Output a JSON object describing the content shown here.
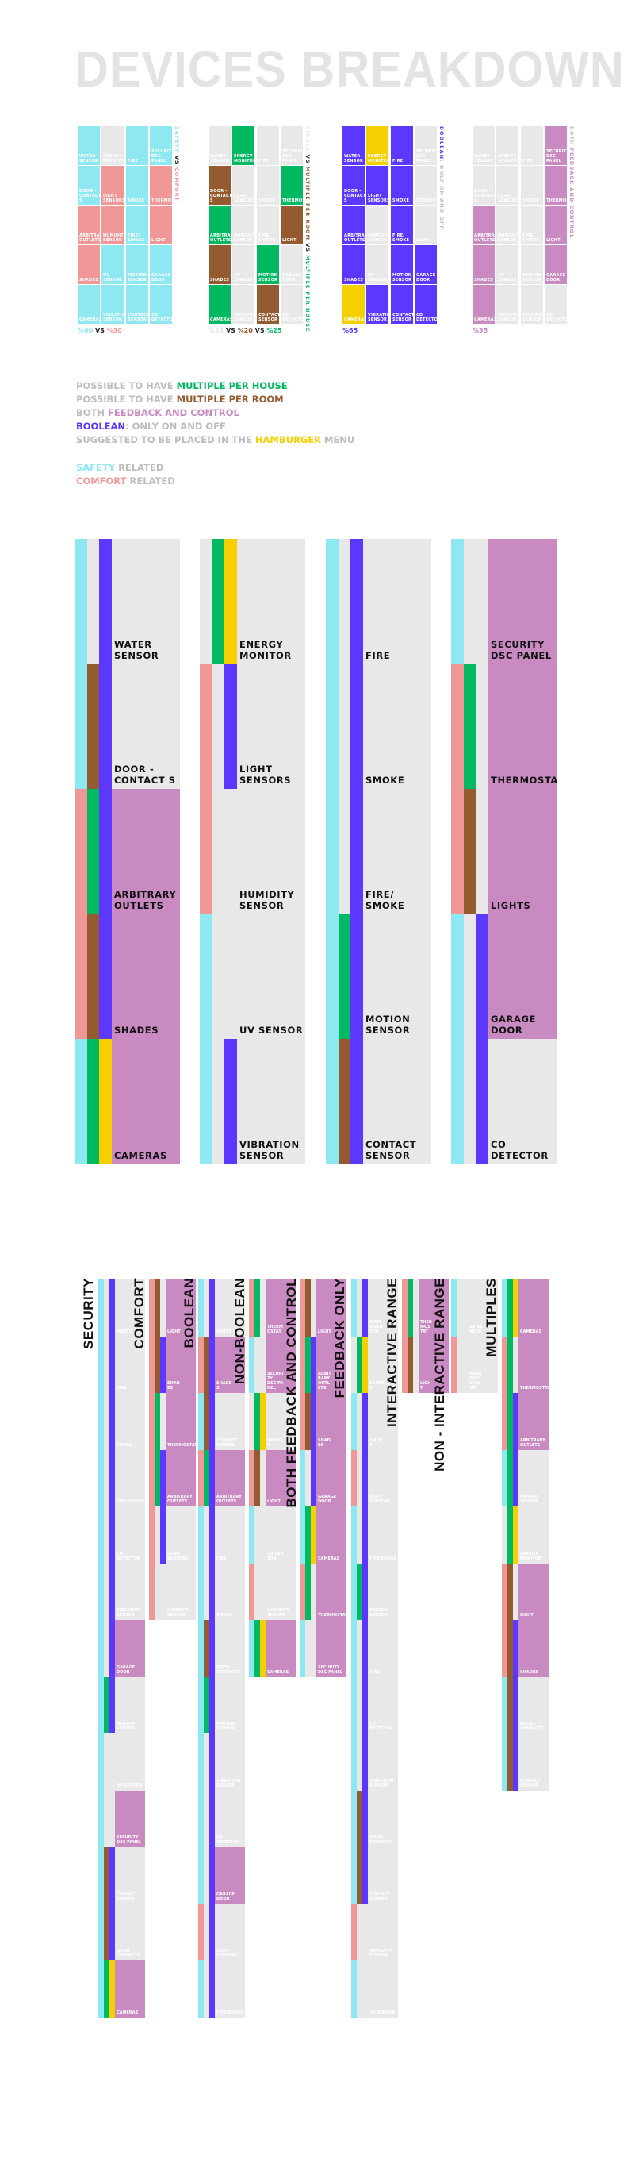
{
  "title": "DEVICES BREAKDOWN",
  "palette": {
    "safety": "#8EE8F2",
    "comfort": "#F09797",
    "house": "#00B960",
    "room": "#945A30",
    "boolean": "#5C38FF",
    "hamburger": "#F5CF00",
    "both": "#C98AC2",
    "none": "#E8E8E8",
    "muted": "#BDBDBD",
    "dark": "#222222"
  },
  "devices": {
    "water": {
      "safety": "safety",
      "multiple": null,
      "kind": "boolean",
      "both": false
    },
    "door": {
      "safety": "safety",
      "multiple": "room",
      "kind": "boolean",
      "both": false
    },
    "outlets": {
      "safety": "comfort",
      "multiple": "house",
      "kind": "boolean",
      "both": true
    },
    "shades": {
      "safety": "comfort",
      "multiple": "room",
      "kind": "boolean",
      "both": true
    },
    "cameras": {
      "safety": "safety",
      "multiple": "house",
      "kind": "hamburger",
      "both": true
    },
    "energy": {
      "safety": null,
      "multiple": "house",
      "kind": "hamburger",
      "both": false
    },
    "lightsensors": {
      "safety": "comfort",
      "multiple": null,
      "kind": "boolean",
      "both": false
    },
    "humidity": {
      "safety": "comfort",
      "multiple": null,
      "kind": null,
      "both": false
    },
    "uv": {
      "safety": "safety",
      "multiple": null,
      "kind": null,
      "both": false
    },
    "vibration": {
      "safety": "safety",
      "multiple": null,
      "kind": "boolean",
      "both": false
    },
    "fire": {
      "safety": "safety",
      "multiple": null,
      "kind": "boolean",
      "both": false
    },
    "smoke": {
      "safety": "safety",
      "multiple": null,
      "kind": "boolean",
      "both": false
    },
    "firesmoke": {
      "safety": "safety",
      "multiple": null,
      "kind": "boolean",
      "both": false
    },
    "motion": {
      "safety": "safety",
      "multiple": "house",
      "kind": "boolean",
      "both": false
    },
    "contact": {
      "safety": "safety",
      "multiple": "room",
      "kind": "boolean",
      "both": false
    },
    "security": {
      "safety": "safety",
      "multiple": null,
      "kind": null,
      "both": true
    },
    "thermostat": {
      "safety": "comfort",
      "multiple": "house",
      "kind": null,
      "both": true
    },
    "light": {
      "safety": "comfort",
      "multiple": "room",
      "kind": null,
      "both": true
    },
    "garage": {
      "safety": "safety",
      "multiple": null,
      "kind": "boolean",
      "both": true
    },
    "co": {
      "safety": "safety",
      "multiple": null,
      "kind": "boolean",
      "both": false
    }
  },
  "section1": {
    "columns": [
      [
        {
          "device": "water",
          "label": "WATER\nSENSOR"
        },
        {
          "device": "door",
          "label": "DOOR -\nCONTACT S"
        },
        {
          "device": "outlets",
          "label": "ARBITRARY\nOUTLETS"
        },
        {
          "device": "shades",
          "label": "SHADES"
        },
        {
          "device": "cameras",
          "label": "CAMERAS"
        }
      ],
      [
        {
          "device": "energy",
          "label": "ENERGY\nMONITOR"
        },
        {
          "device": "lightsensors",
          "label": "LIGHT\nSENSORS"
        },
        {
          "device": "humidity",
          "label": "HUMIDITI\nSENSOR"
        },
        {
          "device": "uv",
          "label": "UV SENSOR"
        },
        {
          "device": "vibration",
          "label": "VIBRATION\nSENSOR"
        }
      ],
      [
        {
          "device": "fire",
          "label": "FIRE"
        },
        {
          "device": "smoke",
          "label": "SMOKE"
        },
        {
          "device": "firesmoke",
          "label": "FIRE/\nSMOKE"
        },
        {
          "device": "motion",
          "label": "MOTION\nSENSOR"
        },
        {
          "device": "contact",
          "label": "CONTACT\nSENSOR"
        }
      ],
      [
        {
          "device": "security",
          "label": "SECURITY\nDSC PANEL"
        },
        {
          "device": "thermostat",
          "label": "THERMOSTAT"
        },
        {
          "device": "light",
          "label": "LIGHT"
        },
        {
          "device": "garage",
          "label": "GARAGE\nDOOR"
        },
        {
          "device": "co",
          "label": "CO\nDETECTOR"
        }
      ]
    ],
    "groups": [
      {
        "attribute": "safety",
        "caption": [
          {
            "text": "SAFETY ",
            "color": "safety"
          },
          {
            "text": "VS ",
            "color": "dark"
          },
          {
            "text": "COMFORT",
            "color": "comfort"
          }
        ],
        "percent": [
          {
            "text": "%60 ",
            "color": "safety"
          },
          {
            "text": "VS ",
            "color": "dark"
          },
          {
            "text": "%30",
            "color": "comfort"
          }
        ]
      },
      {
        "attribute": "multiple",
        "caption": [
          {
            "text": "SINGLE ",
            "color": "none"
          },
          {
            "text": "VS ",
            "color": "dark"
          },
          {
            "text": "MULTIPLE PER ROOM ",
            "color": "room"
          },
          {
            "text": "VS ",
            "color": "dark"
          },
          {
            "text": "MULTIPLE PER HOUSE",
            "color": "house"
          }
        ],
        "percent": [
          {
            "text": "%55 ",
            "color": "none"
          },
          {
            "text": "VS ",
            "color": "dark"
          },
          {
            "text": "%20 ",
            "color": "room"
          },
          {
            "text": "VS ",
            "color": "dark"
          },
          {
            "text": "%25",
            "color": "house"
          }
        ]
      },
      {
        "attribute": "kind",
        "caption": [
          {
            "text": "BOOLEAN",
            "color": "boolean"
          },
          {
            "text": ": ONLY ON AND OFF",
            "color": "muted"
          }
        ],
        "percent": [
          {
            "text": "%65",
            "color": "boolean"
          }
        ]
      },
      {
        "attribute": "both",
        "caption": [
          {
            "text": "BOTH ",
            "color": "muted"
          },
          {
            "text": "FEEDBACK AND CONTROL",
            "color": "both"
          }
        ],
        "percent": [
          {
            "text": "%35",
            "color": "both"
          }
        ]
      }
    ]
  },
  "legend": [
    [
      {
        "text": "POSSIBLE TO HAVE ",
        "color": "muted"
      },
      {
        "text": "MULTIPLE PER HOUSE",
        "color": "house"
      }
    ],
    [
      {
        "text": "POSSIBLE TO HAVE ",
        "color": "muted"
      },
      {
        "text": "MULTIPLE PER ROOM",
        "color": "room"
      }
    ],
    [
      {
        "text": "BOTH ",
        "color": "muted"
      },
      {
        "text": "FEEDBACK AND CONTROL",
        "color": "both"
      }
    ],
    [
      {
        "text": "BOOLEAN",
        "color": "boolean"
      },
      {
        "text": ": ONLY ON AND OFF",
        "color": "muted"
      }
    ],
    [
      {
        "text": "SUGGESTED TO BE PLACED IN THE ",
        "color": "muted"
      },
      {
        "text": "HAMBURGER",
        "color": "hamburger"
      },
      {
        "text": " MENU",
        "color": "muted"
      }
    ],
    [],
    [
      {
        "text": "SAFETY",
        "color": "safety"
      },
      {
        "text": " RELATED",
        "color": "muted"
      }
    ],
    [
      {
        "text": "COMFORT",
        "color": "comfort"
      },
      {
        "text": " RELATED",
        "color": "muted"
      }
    ]
  ],
  "section2": {
    "columns": [
      [
        {
          "device": "water",
          "label": "WATER\nSENSOR"
        },
        {
          "device": "door",
          "label": "DOOR -\nCONTACT S"
        },
        {
          "device": "outlets",
          "label": "ARBITRARY\nOUTLETS"
        },
        {
          "device": "shades",
          "label": "SHADES"
        },
        {
          "device": "cameras",
          "label": "CAMERAS"
        }
      ],
      [
        {
          "device": "energy",
          "label": "ENERGY\nMONITOR"
        },
        {
          "device": "lightsensors",
          "label": "LIGHT\nSENSORS"
        },
        {
          "device": "humidity",
          "label": "HUMIDITY\nSENSOR"
        },
        {
          "device": "uv",
          "label": "UV SENSOR"
        },
        {
          "device": "vibration",
          "label": "VIBRATION\nSENSOR"
        }
      ],
      [
        {
          "device": "fire",
          "label": "FIRE"
        },
        {
          "device": "smoke",
          "label": "SMOKE"
        },
        {
          "device": "firesmoke",
          "label": "FIRE/\nSMOKE"
        },
        {
          "device": "motion",
          "label": "MOTION\nSENSOR"
        },
        {
          "device": "contact",
          "label": "CONTACT\nSENSOR"
        }
      ],
      [
        {
          "device": "security",
          "label": "SECURITY\nDSC PANEL"
        },
        {
          "device": "thermostat",
          "label": "THERMOSTAT"
        },
        {
          "device": "light",
          "label": "LIGHTS"
        },
        {
          "device": "garage",
          "label": "GARAGE\nDOOR"
        },
        {
          "device": "co",
          "label": "CO\nDETECTOR"
        }
      ]
    ]
  },
  "section3": {
    "headings": [
      "SECURITY",
      "COMFORT",
      "BOOLEAN",
      "NON-BOOLEAN",
      "BOTH FEEDBACK AND CONTROL",
      "FEEDBACK ONLY",
      "INTERACTIVE RANGE",
      "NON - INTERACTIVE RANGE",
      "MULTIPLES"
    ],
    "columns": [
      [
        {
          "device": "water",
          "label": "WATER"
        },
        {
          "device": "fire",
          "label": "FIRE"
        },
        {
          "device": "smoke",
          "label": "SMOKE"
        },
        {
          "device": "firesmoke",
          "label": "FIRE/SMOKE"
        },
        {
          "device": "co",
          "label": "CO DETECTOR"
        },
        {
          "device": "vibration",
          "label": "VIBRATION SENSOR"
        },
        {
          "device": "garage",
          "label": "GARAGE DOOR"
        },
        {
          "device": "motion",
          "label": "MOTION\nSENSOR"
        },
        {
          "device": "uv",
          "label": "UV SENSOR"
        },
        {
          "device": "security",
          "label": "SECURITY\nDSC PANEL"
        },
        {
          "device": "contact",
          "label": "CONTACT\nSENSOR"
        },
        {
          "device": "door",
          "label": "DOOR - CONTACTS"
        },
        {
          "device": "cameras",
          "label": "CAMERAS"
        }
      ],
      [
        {
          "device": "light",
          "label": "LIGHT"
        },
        {
          "device": "shades",
          "label": "SHADES"
        },
        {
          "device": "thermostat",
          "label": "THERMOSTAT"
        },
        {
          "device": "outlets",
          "label": "ARBITRARY\nOUTLETS"
        },
        {
          "device": "lightsensors",
          "label": "LIGHT SENSORS"
        },
        {
          "device": "humidity",
          "label": "HUMIDITY\nSENSOR"
        }
      ],
      [
        {
          "device": "water",
          "label": "WATER"
        },
        {
          "device": "shades",
          "label": "SHADES"
        },
        {
          "device": "contact",
          "label": "CONTACT\nSENSOR"
        },
        {
          "device": "outlets",
          "label": "ARBITRARY\nOUTLETS"
        },
        {
          "device": "fire",
          "label": "FIRE"
        },
        {
          "device": "smoke",
          "label": "SMOKE"
        },
        {
          "device": "door",
          "label": "DOOR - CONTACTS"
        },
        {
          "device": "motion",
          "label": "MOTION\nSENSOR"
        },
        {
          "device": "vibration",
          "label": "VIBRATION SENSOR"
        },
        {
          "device": "co",
          "label": "CO DETECTOR"
        },
        {
          "device": "garage",
          "label": "GARAGE DOOR"
        },
        {
          "device": "lightsensors",
          "label": "LIGHT SENSORS"
        },
        {
          "device": "firesmoke",
          "label": "FIRE/SMOKE"
        }
      ],
      [
        {
          "device": "thermostat",
          "label": "THERMOSTAT"
        },
        {
          "device": "security",
          "label": "SECURITY\nDSC PANEL"
        },
        {
          "device": "energy",
          "label": "ENERGY"
        },
        {
          "device": "light",
          "label": "LIGHT"
        },
        {
          "device": "uv",
          "label": "UV SENSOR"
        },
        {
          "device": "humidity",
          "label": "HUMIDITY\nSENSOR"
        },
        {
          "device": "cameras",
          "label": "CAMERAS"
        }
      ],
      [
        {
          "device": "light",
          "label": "LIGHT"
        },
        {
          "device": "outlets",
          "label": "ARBITRARY\nOUTLETS"
        },
        {
          "device": "shades",
          "label": "SHADES"
        },
        {
          "device": "garage",
          "label": "GARAGE DOOR"
        },
        {
          "device": "cameras",
          "label": "CAMERAS"
        },
        {
          "device": "thermostat",
          "label": "THERMOSTAT"
        },
        {
          "device": "security",
          "label": "SECURITY\nDSC PANEL"
        }
      ],
      [
        {
          "device": "water",
          "label": "WATER SENSOR"
        },
        {
          "device": "energy",
          "label": "ENERGY"
        },
        {
          "device": "smoke",
          "label": "SMOKE"
        },
        {
          "device": "lightsensors",
          "label": "LIGHT SENSORS"
        },
        {
          "device": "firesmoke",
          "label": "FIRE/SMOKE"
        },
        {
          "device": "motion",
          "label": "MOTION\nSENSOR"
        },
        {
          "device": "fire",
          "label": "FIRE"
        },
        {
          "device": "co",
          "label": "CO DETECTOR"
        },
        {
          "device": "vibration",
          "label": "VIBRATION SENSOR"
        },
        {
          "device": "door",
          "label": "DOOR - CONTACTS"
        },
        {
          "device": "contact",
          "label": "CONTACT SENSOR"
        },
        {
          "device": "humidity",
          "label": "HUMIDITY\nSENSOR"
        },
        {
          "device": "uv",
          "label": "UV SENSOR"
        }
      ],
      [
        {
          "device": "thermostat",
          "label": "THERMOSTAT"
        },
        {
          "device": "light",
          "label": "LIGHT"
        }
      ],
      [
        {
          "device": "uv",
          "label": "UV SENSOR"
        },
        {
          "device": "humidity",
          "label": "HUMIDITY\nSENSOR"
        }
      ],
      [
        {
          "device": "cameras",
          "label": "CAMERAS"
        },
        {
          "device": "thermostat",
          "label": "THERMOSTAT"
        },
        {
          "device": "outlets",
          "label": "ARBITRARY\nOUTLETS"
        },
        {
          "device": "motion",
          "label": "MOTION\nSENSOR"
        },
        {
          "device": "energy",
          "label": "ENERGY MONITOR"
        },
        {
          "device": "light",
          "label": "LIGHT"
        },
        {
          "device": "shades",
          "label": "SHADES"
        },
        {
          "device": "door",
          "label": "DOOR - CONTACTS"
        },
        {
          "device": "contact",
          "label": "CONTACT\nSENSOR"
        }
      ]
    ]
  }
}
